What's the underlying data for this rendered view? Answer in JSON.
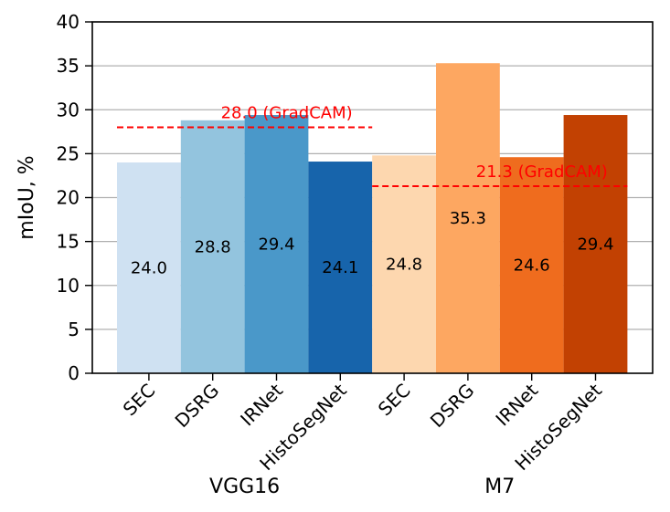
{
  "chart_data": {
    "type": "bar",
    "title": "",
    "ylabel": "mIoU, %",
    "xlabel": "",
    "ylim": [
      0,
      40
    ],
    "yticks": [
      0,
      5,
      10,
      15,
      20,
      25,
      30,
      35,
      40
    ],
    "grid": "horizontal",
    "groups": [
      {
        "name": "VGG16",
        "reference": {
          "value": 28.0,
          "label": "28.0 (GradCAM)"
        },
        "bars": [
          {
            "category": "SEC",
            "value": 24.0,
            "label": "24.0",
            "color": "#cfe1f2"
          },
          {
            "category": "DSRG",
            "value": 28.8,
            "label": "28.8",
            "color": "#93c4de"
          },
          {
            "category": "IRNet",
            "value": 29.4,
            "label": "29.4",
            "color": "#4a98c9"
          },
          {
            "category": "HistoSegNet",
            "value": 24.1,
            "label": "24.1",
            "color": "#1764ab"
          }
        ]
      },
      {
        "name": "M7",
        "reference": {
          "value": 21.3,
          "label": "21.3 (GradCAM)"
        },
        "bars": [
          {
            "category": "SEC",
            "value": 24.8,
            "label": "24.8",
            "color": "#fdd7af"
          },
          {
            "category": "DSRG",
            "value": 35.3,
            "label": "35.3",
            "color": "#fda761"
          },
          {
            "category": "IRNet",
            "value": 24.6,
            "label": "24.6",
            "color": "#ef6c1e"
          },
          {
            "category": "HistoSegNet",
            "value": 29.4,
            "label": "29.4",
            "color": "#c24102"
          }
        ]
      }
    ],
    "reference_color": "#ff0000"
  }
}
